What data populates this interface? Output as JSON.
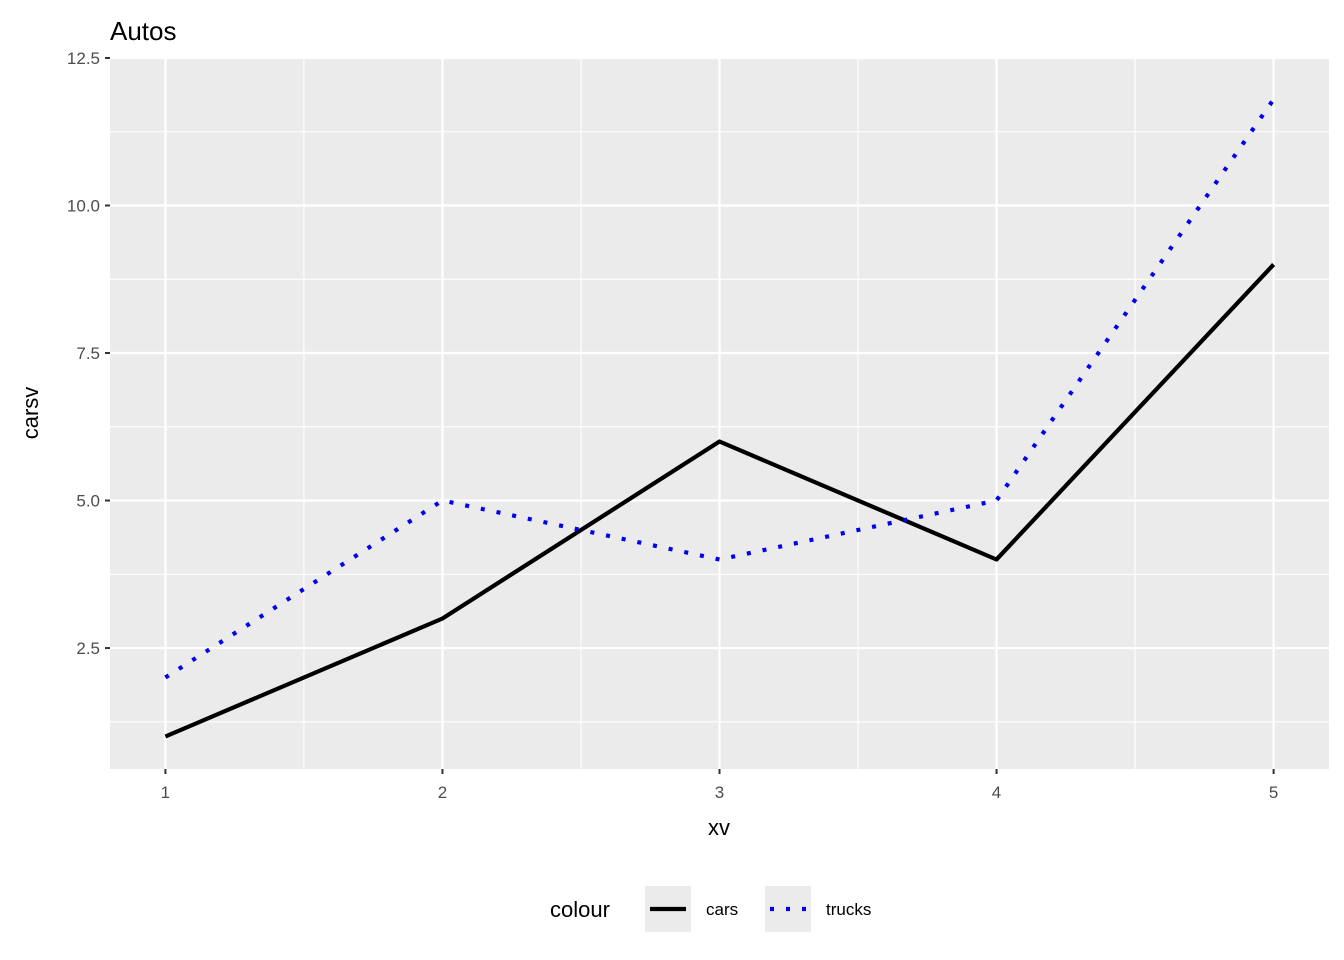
{
  "chart_data": {
    "type": "line",
    "title": "Autos",
    "xlabel": "xv",
    "ylabel": "carsv",
    "x": [
      1,
      2,
      3,
      4,
      5
    ],
    "x_ticks": [
      "1",
      "2",
      "3",
      "4",
      "5"
    ],
    "y_ticks": [
      "2.5",
      "5.0",
      "7.5",
      "10.0",
      "12.5"
    ],
    "xlim": [
      0.8,
      5.2
    ],
    "ylim": [
      0.45,
      12.5
    ],
    "grid": true,
    "legend_title": "colour",
    "legend_position": "bottom",
    "series": [
      {
        "name": "cars",
        "values": [
          1,
          3,
          6,
          4,
          9
        ],
        "color": "#000000",
        "linestyle": "solid"
      },
      {
        "name": "trucks",
        "values": [
          2,
          5,
          4,
          5,
          11.8
        ],
        "color": "#0000ee",
        "linestyle": "dotted"
      }
    ]
  }
}
